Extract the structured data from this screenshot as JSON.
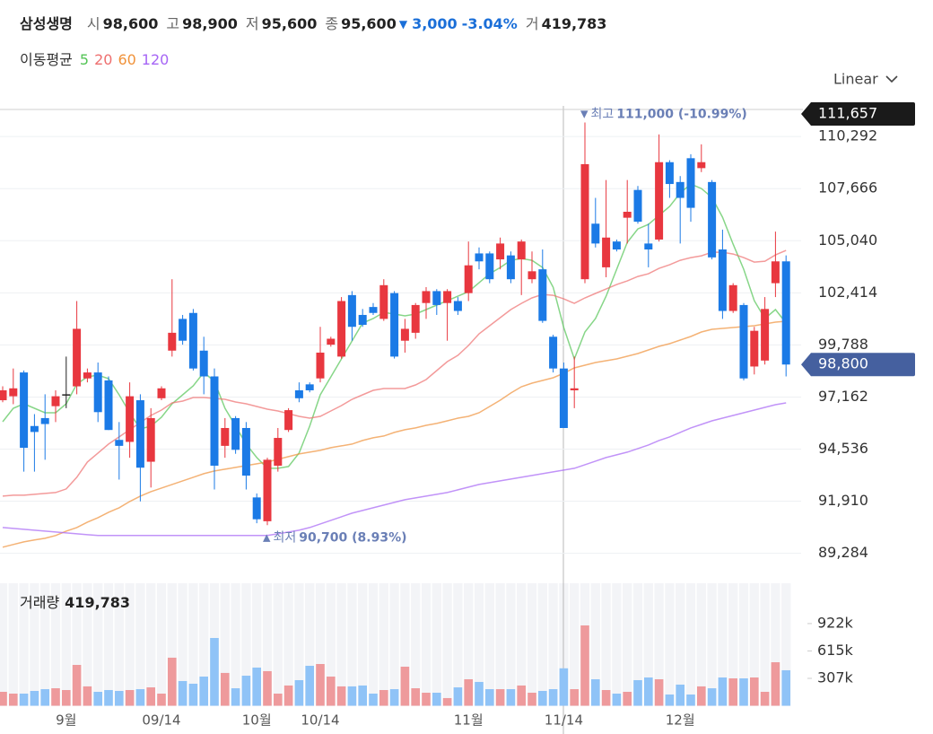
{
  "header": {
    "name": "삼성생명",
    "fields": [
      {
        "label": "시",
        "value": "98,600"
      },
      {
        "label": "고",
        "value": "98,900"
      },
      {
        "label": "저",
        "value": "95,600"
      },
      {
        "label": "종",
        "value": "95,600"
      }
    ],
    "change": {
      "arrow": "▼",
      "amount": "3,000",
      "percent": "-3.04%"
    },
    "volume": {
      "label": "거",
      "value": "419,783"
    }
  },
  "toolbar": {
    "scale": "Linear"
  },
  "chart_data": [
    {
      "type": "candlestick",
      "legend_title": "이동평균",
      "categories": [
        null,
        null,
        null,
        null,
        null,
        null,
        "9월",
        null,
        null,
        null,
        null,
        null,
        null,
        null,
        null,
        "09/14",
        null,
        null,
        null,
        null,
        null,
        null,
        null,
        null,
        "10월",
        null,
        null,
        null,
        null,
        null,
        "10/14",
        null,
        null,
        null,
        null,
        null,
        null,
        null,
        null,
        null,
        null,
        null,
        null,
        null,
        "11월",
        null,
        null,
        null,
        null,
        null,
        null,
        null,
        null,
        "11/14",
        null,
        null,
        null,
        null,
        null,
        null,
        null,
        null,
        null,
        null,
        "12월",
        null,
        null,
        null,
        null,
        null,
        null,
        null,
        null,
        null,
        null
      ],
      "open": [
        97000,
        97200,
        98400,
        95700,
        96100,
        96700,
        97300,
        97700,
        98100,
        98400,
        98000,
        95000,
        94900,
        97000,
        93900,
        97100,
        99500,
        101100,
        101400,
        99500,
        98200,
        94700,
        96100,
        95600,
        92100,
        90900,
        93700,
        95500,
        97500,
        97800,
        98100,
        99800,
        99200,
        102300,
        101300,
        101700,
        101100,
        102400,
        100000,
        100400,
        101900,
        102500,
        101900,
        102000,
        102400,
        104400,
        104400,
        104100,
        104300,
        104100,
        103100,
        103600,
        100200,
        98600,
        97500,
        103100,
        105900,
        103700,
        105000,
        106200,
        107600,
        104900,
        105100,
        109000,
        108000,
        109200,
        108700,
        108000,
        104600,
        101500,
        101800,
        98700,
        99000,
        102900,
        104000
      ],
      "high": [
        97700,
        98600,
        98500,
        96300,
        97300,
        97500,
        99200,
        102000,
        98600,
        98900,
        98200,
        95900,
        97900,
        97300,
        96600,
        97700,
        103100,
        101300,
        101600,
        100200,
        98600,
        96100,
        96200,
        95900,
        92300,
        94100,
        95600,
        96600,
        97900,
        97900,
        100700,
        100200,
        102200,
        102500,
        101600,
        101900,
        103100,
        102500,
        101100,
        101900,
        102700,
        102600,
        102600,
        102200,
        105000,
        104700,
        104500,
        105200,
        104500,
        105100,
        104500,
        104600,
        100300,
        98900,
        99200,
        111000,
        107200,
        108100,
        105100,
        108100,
        107800,
        105900,
        110400,
        109100,
        108300,
        109400,
        109900,
        108100,
        105600,
        102900,
        101900,
        100700,
        102200,
        105500,
        104300
      ],
      "low": [
        96900,
        96800,
        93400,
        93400,
        94000,
        95900,
        96600,
        97300,
        97900,
        95900,
        95500,
        93000,
        94100,
        91900,
        92600,
        97000,
        99200,
        99800,
        98500,
        97300,
        92500,
        94100,
        94300,
        92500,
        90800,
        90700,
        93400,
        95400,
        96900,
        97400,
        97900,
        99700,
        99100,
        100000,
        100700,
        101300,
        101000,
        99100,
        99400,
        100100,
        101100,
        101300,
        100000,
        101300,
        102000,
        103600,
        102900,
        103600,
        102900,
        102300,
        102900,
        100900,
        98400,
        95600,
        96600,
        102900,
        104700,
        103200,
        104500,
        104900,
        105900,
        103700,
        105000,
        107200,
        104900,
        106000,
        108500,
        104100,
        101100,
        101400,
        98000,
        98300,
        98800,
        102200,
        98200
      ],
      "close": [
        97500,
        97600,
        94600,
        95400,
        95800,
        97200,
        97300,
        100600,
        98400,
        96400,
        95500,
        94700,
        97200,
        93600,
        96100,
        97600,
        100400,
        100000,
        98600,
        98200,
        93700,
        95600,
        94500,
        93200,
        91000,
        94000,
        95100,
        96500,
        97100,
        97500,
        99400,
        100100,
        102000,
        100700,
        100800,
        101400,
        102800,
        99200,
        100600,
        101800,
        102500,
        101800,
        102500,
        101500,
        103800,
        104000,
        103100,
        104900,
        103100,
        105000,
        103500,
        101000,
        98600,
        95600,
        97600,
        108900,
        104900,
        105200,
        104600,
        106500,
        106000,
        104600,
        109000,
        107900,
        107200,
        106700,
        109000,
        104200,
        101500,
        102800,
        98100,
        100500,
        101600,
        104000,
        98800
      ],
      "up_color": "#e8373f",
      "down_color": "#1b7ae6",
      "flat_color": "#222222",
      "ylim": [
        88000,
        111657
      ],
      "yticks": [
        {
          "value": 89284,
          "label": "89,284"
        },
        {
          "value": 91910,
          "label": "91,910"
        },
        {
          "value": 94536,
          "label": "94,536"
        },
        {
          "value": 97162,
          "label": "97,162"
        },
        {
          "value": 99788,
          "label": "99,788"
        },
        {
          "value": 102414,
          "label": "102,414"
        },
        {
          "value": 105040,
          "label": "105,040"
        },
        {
          "value": 107666,
          "label": "107,666"
        },
        {
          "value": 110292,
          "label": "110,292"
        }
      ],
      "grid": true,
      "series": [
        {
          "name": "5",
          "color": "#54c456",
          "values": [
            95918,
            96596,
            96822,
            96596,
            96370,
            96370,
            96822,
            97816,
            98178,
            98268,
            98088,
            97274,
            96370,
            95556,
            95692,
            96144,
            96822,
            97274,
            97726,
            98404,
            97952,
            96596,
            95692,
            94788,
            94110,
            93568,
            93568,
            93658,
            94336,
            95692,
            97274,
            98178,
            99082,
            99986,
            100890,
            101116,
            101432,
            101342,
            101252,
            101342,
            101568,
            101794,
            102020,
            102246,
            102472,
            102924,
            103376,
            103692,
            104054,
            104144,
            104054,
            103692,
            102698,
            100664,
            99082,
            100438,
            101116,
            102246,
            103602,
            104958,
            105636,
            105862,
            106314,
            106766,
            107444,
            107896,
            107670,
            107218,
            106224,
            104868,
            103602,
            102020,
            101116,
            101568,
            100890
          ]
        },
        {
          "name": "20",
          "color": "#ee6f6f",
          "values": [
            92166,
            92212,
            92212,
            92257,
            92302,
            92347,
            92528,
            93116,
            93884,
            94336,
            94788,
            95150,
            95511,
            95873,
            96234,
            96506,
            96867,
            96958,
            97138,
            97138,
            97093,
            97048,
            96912,
            96822,
            96686,
            96551,
            96460,
            96325,
            96189,
            96099,
            96189,
            96460,
            96732,
            97048,
            97274,
            97500,
            97590,
            97590,
            97590,
            97771,
            98042,
            98494,
            98946,
            99263,
            99760,
            100348,
            100754,
            101161,
            101568,
            101884,
            102156,
            102336,
            102291,
            102110,
            101884,
            102156,
            102382,
            102608,
            102834,
            103014,
            103240,
            103376,
            103647,
            103828,
            104054,
            104190,
            104280,
            104461,
            104461,
            104370,
            104190,
            103964,
            104009,
            104325,
            104551
          ]
        },
        {
          "name": "60",
          "color": "#f0923a",
          "values": [
            89590,
            89726,
            89861,
            89952,
            90042,
            90178,
            90404,
            90584,
            90856,
            91082,
            91353,
            91579,
            91895,
            92166,
            92392,
            92573,
            92754,
            92935,
            93116,
            93297,
            93432,
            93522,
            93613,
            93703,
            93794,
            93884,
            94020,
            94155,
            94291,
            94381,
            94472,
            94607,
            94698,
            94788,
            94969,
            95104,
            95195,
            95376,
            95511,
            95602,
            95737,
            95828,
            95963,
            96099,
            96189,
            96370,
            96686,
            97003,
            97364,
            97681,
            97862,
            97997,
            98133,
            98359,
            98630,
            98766,
            98901,
            98992,
            99082,
            99218,
            99353,
            99534,
            99715,
            99850,
            100031,
            100212,
            100438,
            100574,
            100619,
            100664,
            100709,
            100754,
            100845,
            100935,
            100980
          ]
        },
        {
          "name": "120",
          "color": "#a665f5",
          "values": [
            90584,
            90539,
            90494,
            90449,
            90404,
            90358,
            90313,
            90268,
            90223,
            90178,
            90178,
            90178,
            90178,
            90178,
            90178,
            90178,
            90178,
            90178,
            90178,
            90178,
            90178,
            90178,
            90178,
            90178,
            90178,
            90178,
            90268,
            90358,
            90449,
            90584,
            90765,
            90946,
            91127,
            91308,
            91443,
            91579,
            91714,
            91850,
            91986,
            92076,
            92166,
            92257,
            92347,
            92483,
            92618,
            92754,
            92845,
            92935,
            93026,
            93116,
            93206,
            93297,
            93387,
            93477,
            93568,
            93748,
            93929,
            94110,
            94246,
            94381,
            94562,
            94743,
            94969,
            95150,
            95376,
            95602,
            95782,
            95963,
            96099,
            96234,
            96370,
            96506,
            96641,
            96777,
            96867
          ]
        }
      ],
      "annotations": [
        {
          "anchor": "max_high",
          "marker": "▼",
          "label": "최고",
          "value_label": "111,000 (-10.99%)"
        },
        {
          "anchor": "min_low",
          "marker": "▲",
          "label": "최저",
          "value_label": "90,700 (8.93%)"
        }
      ],
      "price_tags": [
        {
          "value": 111657,
          "label": "111,657",
          "color": "#1a1a1a"
        },
        {
          "value": 98800,
          "label": "98,800",
          "color": "#45609f"
        }
      ]
    },
    {
      "type": "bar",
      "title": "거래량",
      "title_value": "419,783",
      "values": [
        156000,
        136000,
        136000,
        166000,
        186000,
        196000,
        176000,
        458000,
        217000,
        156000,
        176000,
        166000,
        176000,
        186000,
        206000,
        136000,
        539000,
        277000,
        247000,
        327000,
        760000,
        368000,
        196000,
        337000,
        428000,
        388000,
        136000,
        227000,
        287000,
        448000,
        468000,
        327000,
        217000,
        217000,
        227000,
        136000,
        176000,
        186000,
        438000,
        196000,
        146000,
        146000,
        86000,
        206000,
        297000,
        267000,
        186000,
        186000,
        186000,
        227000,
        146000,
        166000,
        186000,
        419783,
        186000,
        901000,
        297000,
        176000,
        136000,
        156000,
        287000,
        317000,
        297000,
        126000,
        237000,
        126000,
        217000,
        196000,
        317000,
        307000,
        307000,
        317000,
        156000,
        488000,
        398000
      ],
      "up_color": "#ee9a9c",
      "down_color": "#8fc3f7",
      "ylim": [
        0,
        1374000
      ],
      "yticks": [
        {
          "value": 307000,
          "label": "307k"
        },
        {
          "value": 615000,
          "label": "615k"
        },
        {
          "value": 922000,
          "label": "922k"
        }
      ],
      "grid": false
    }
  ]
}
